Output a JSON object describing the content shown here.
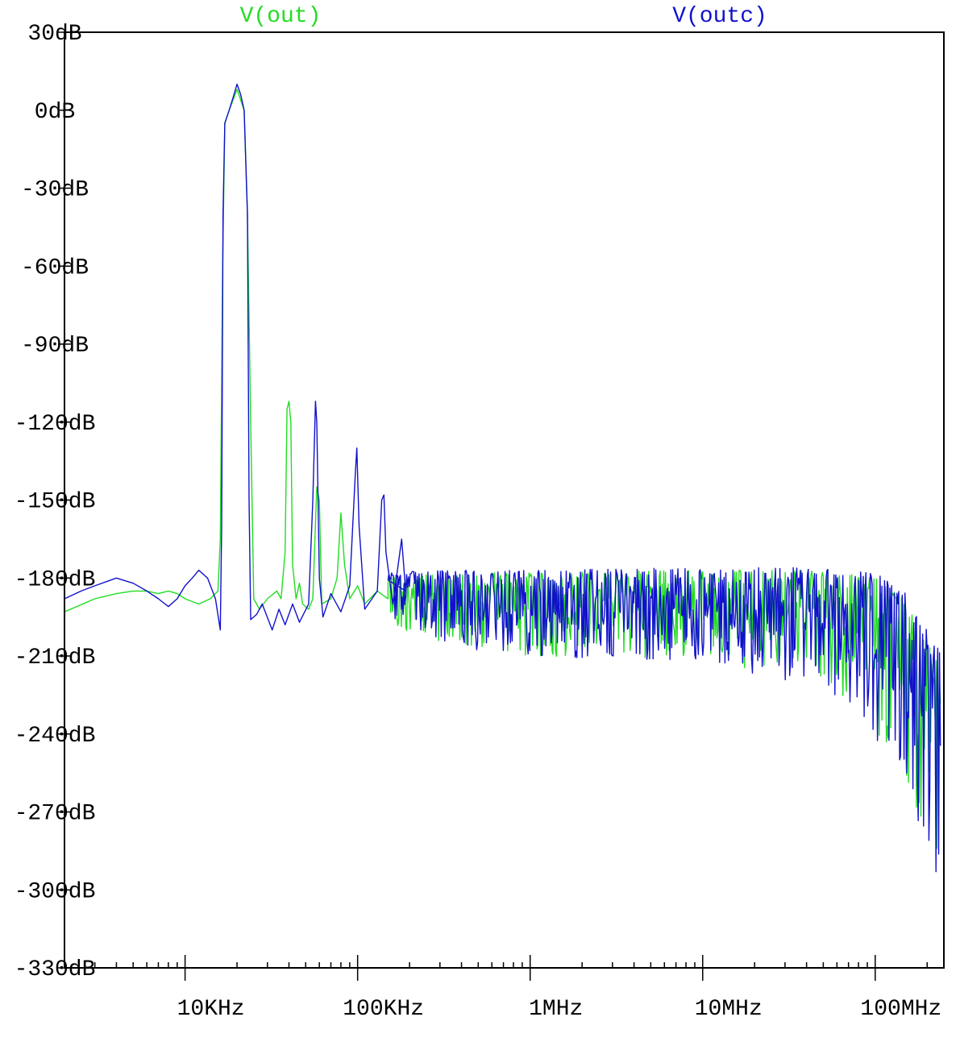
{
  "chart_data": {
    "type": "line",
    "title": "",
    "xlabel": "",
    "ylabel": "",
    "x_scale": "log",
    "x_unit": "Hz",
    "y_unit": "dB",
    "xlim": [
      2000,
      250000000
    ],
    "ylim": [
      -330,
      30
    ],
    "grid": false,
    "legend_position": "top",
    "x_ticks": [
      {
        "value": 10000,
        "label": "10KHz"
      },
      {
        "value": 100000,
        "label": "100KHz"
      },
      {
        "value": 1000000,
        "label": "1MHz"
      },
      {
        "value": 10000000,
        "label": "10MHz"
      },
      {
        "value": 100000000,
        "label": "100MHz"
      }
    ],
    "y_ticks": [
      {
        "value": 30,
        "label": "30dB"
      },
      {
        "value": 0,
        "label": "0dB"
      },
      {
        "value": -30,
        "label": "-30dB"
      },
      {
        "value": -60,
        "label": "-60dB"
      },
      {
        "value": -90,
        "label": "-90dB"
      },
      {
        "value": -120,
        "label": "-120dB"
      },
      {
        "value": -150,
        "label": "-150dB"
      },
      {
        "value": -180,
        "label": "-180dB"
      },
      {
        "value": -210,
        "label": "-210dB"
      },
      {
        "value": -240,
        "label": "-240dB"
      },
      {
        "value": -270,
        "label": "-270dB"
      },
      {
        "value": -300,
        "label": "-300dB"
      },
      {
        "value": -330,
        "label": "-330dB"
      }
    ],
    "series": [
      {
        "name": "V(out)",
        "color": "#22dd22",
        "noise_band": {
          "from_hz": 150000,
          "to_hz": 250000000,
          "envelope": [
            [
              150000,
              -180,
              -198
            ],
            [
              300000,
              -178,
              -205
            ],
            [
              1000000,
              -178,
              -210
            ],
            [
              10000000,
              -177,
              -212
            ],
            [
              50000000,
              -177,
              -220
            ],
            [
              100000000,
              -180,
              -240
            ],
            [
              150000000,
              -188,
              -255
            ],
            [
              200000000,
              -205,
              -285
            ],
            [
              240000000,
              -215,
              -300
            ]
          ]
        },
        "points": [
          [
            2000,
            -193
          ],
          [
            3000,
            -188
          ],
          [
            4000,
            -186
          ],
          [
            5000,
            -185
          ],
          [
            6000,
            -185
          ],
          [
            7000,
            -186
          ],
          [
            8000,
            -185
          ],
          [
            9000,
            -186
          ],
          [
            10000,
            -188
          ],
          [
            12000,
            -190
          ],
          [
            14000,
            -188
          ],
          [
            15500,
            -185
          ],
          [
            16000,
            -165
          ],
          [
            16500,
            -60
          ],
          [
            17000,
            -5
          ],
          [
            18000,
            0
          ],
          [
            20000,
            8
          ],
          [
            22000,
            0
          ],
          [
            23000,
            -40
          ],
          [
            24000,
            -120
          ],
          [
            25000,
            -188
          ],
          [
            27000,
            -192
          ],
          [
            30000,
            -188
          ],
          [
            34000,
            -185
          ],
          [
            36000,
            -188
          ],
          [
            38000,
            -170
          ],
          [
            39000,
            -115
          ],
          [
            40000,
            -112
          ],
          [
            41000,
            -120
          ],
          [
            42000,
            -175
          ],
          [
            44000,
            -188
          ],
          [
            46000,
            -182
          ],
          [
            48000,
            -190
          ],
          [
            52000,
            -192
          ],
          [
            55000,
            -188
          ],
          [
            58000,
            -145
          ],
          [
            60000,
            -150
          ],
          [
            62000,
            -190
          ],
          [
            70000,
            -188
          ],
          [
            76000,
            -180
          ],
          [
            80000,
            -155
          ],
          [
            84000,
            -175
          ],
          [
            90000,
            -188
          ],
          [
            100000,
            -183
          ],
          [
            110000,
            -190
          ],
          [
            130000,
            -185
          ],
          [
            150000,
            -188
          ]
        ]
      },
      {
        "name": "V(outc)",
        "color": "#1111cc",
        "noise_band": {
          "from_hz": 150000,
          "to_hz": 250000000,
          "envelope": [
            [
              150000,
              -178,
              -200
            ],
            [
              300000,
              -177,
              -206
            ],
            [
              1000000,
              -177,
              -210
            ],
            [
              10000000,
              -176,
              -213
            ],
            [
              50000000,
              -176,
              -222
            ],
            [
              100000000,
              -178,
              -242
            ],
            [
              150000000,
              -186,
              -258
            ],
            [
              200000000,
              -200,
              -290
            ],
            [
              245000000,
              -210,
              -305
            ]
          ]
        },
        "points": [
          [
            2000,
            -188
          ],
          [
            2500,
            -185
          ],
          [
            3000,
            -183
          ],
          [
            4000,
            -180
          ],
          [
            5000,
            -182
          ],
          [
            6000,
            -185
          ],
          [
            7000,
            -188
          ],
          [
            8000,
            -191
          ],
          [
            9000,
            -188
          ],
          [
            10000,
            -183
          ],
          [
            11000,
            -180
          ],
          [
            12000,
            -177
          ],
          [
            13500,
            -180
          ],
          [
            15000,
            -188
          ],
          [
            16000,
            -200
          ],
          [
            16300,
            -160
          ],
          [
            16600,
            -40
          ],
          [
            17000,
            -5
          ],
          [
            18000,
            0
          ],
          [
            19000,
            5
          ],
          [
            20000,
            10
          ],
          [
            21000,
            6
          ],
          [
            22000,
            0
          ],
          [
            23000,
            -40
          ],
          [
            23500,
            -150
          ],
          [
            24000,
            -196
          ],
          [
            26000,
            -194
          ],
          [
            28000,
            -190
          ],
          [
            32000,
            -200
          ],
          [
            35000,
            -192
          ],
          [
            38000,
            -198
          ],
          [
            42000,
            -190
          ],
          [
            46000,
            -197
          ],
          [
            52000,
            -190
          ],
          [
            55000,
            -150
          ],
          [
            57000,
            -112
          ],
          [
            58000,
            -120
          ],
          [
            60000,
            -180
          ],
          [
            63000,
            -195
          ],
          [
            70000,
            -186
          ],
          [
            80000,
            -193
          ],
          [
            90000,
            -183
          ],
          [
            97000,
            -140
          ],
          [
            99000,
            -130
          ],
          [
            102000,
            -160
          ],
          [
            110000,
            -192
          ],
          [
            130000,
            -185
          ],
          [
            138000,
            -150
          ],
          [
            142000,
            -148
          ],
          [
            146000,
            -170
          ],
          [
            160000,
            -190
          ],
          [
            180000,
            -165
          ],
          [
            190000,
            -185
          ]
        ]
      }
    ]
  }
}
